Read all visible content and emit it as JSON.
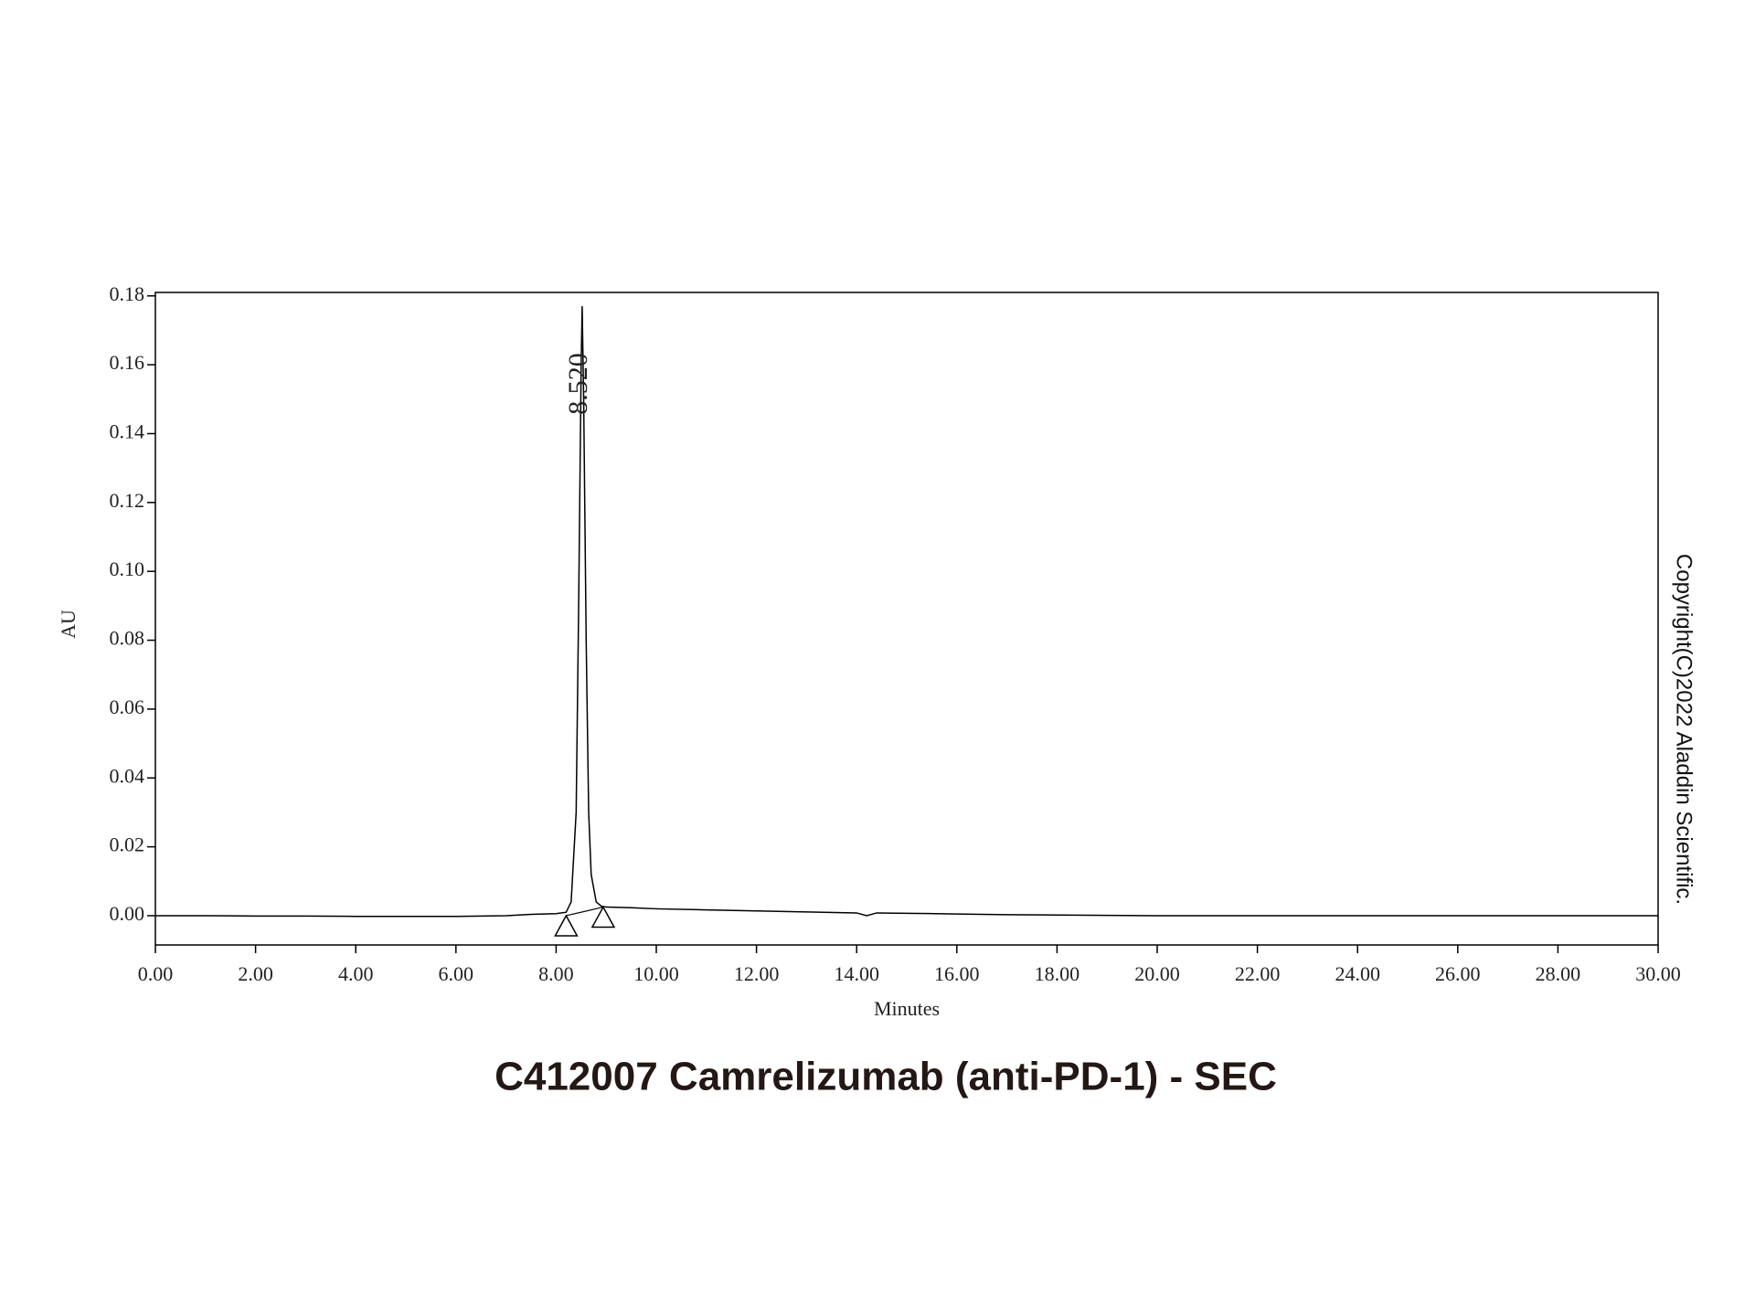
{
  "chart_data": {
    "type": "line",
    "title": "C412007 Camrelizumab (anti-PD-1) - SEC",
    "x_label": "Minutes",
    "y_label": "AU",
    "watermark": "Copyright(C)2022 Aladdin Scientific.",
    "x": [
      0,
      1,
      2,
      3,
      4,
      5,
      6,
      7,
      7.5,
      8.0,
      8.2,
      8.3,
      8.4,
      8.45,
      8.5,
      8.52,
      8.55,
      8.6,
      8.65,
      8.7,
      8.8,
      8.9,
      9.0,
      9.5,
      10,
      11,
      12,
      13,
      14,
      14.2,
      14.4,
      15,
      16,
      17,
      18,
      19,
      20,
      22,
      25,
      30
    ],
    "series": [
      {
        "color": "#000000",
        "values": [
          0,
          0,
          -0.0001,
          -0.0001,
          -0.0002,
          -0.0002,
          -0.0002,
          0,
          0.0004,
          0.0006,
          0.001,
          0.004,
          0.03,
          0.09,
          0.16,
          0.177,
          0.15,
          0.08,
          0.03,
          0.012,
          0.004,
          0.0028,
          0.0025,
          0.0023,
          0.002,
          0.0017,
          0.0014,
          0.0011,
          0.0008,
          0,
          0.0008,
          0.0007,
          0.0005,
          0.0003,
          0.0002,
          0.0001,
          0,
          0,
          0,
          0
        ]
      }
    ],
    "integration_baseline": {
      "x": [
        8.2,
        8.94
      ],
      "values": [
        0,
        0.0025
      ]
    },
    "annotations": [
      {
        "text": "8.520",
        "x": 8.52
      }
    ],
    "xlim": [
      0,
      30
    ],
    "ylim": [
      -0.0085,
      0.181
    ],
    "xticks": [
      {
        "value": 0,
        "label": "0.00"
      },
      {
        "value": 2,
        "label": "2.00"
      },
      {
        "value": 4,
        "label": "4.00"
      },
      {
        "value": 6,
        "label": "6.00"
      },
      {
        "value": 8,
        "label": "8.00"
      },
      {
        "value": 10,
        "label": "10.00"
      },
      {
        "value": 12,
        "label": "12.00"
      },
      {
        "value": 14,
        "label": "14.00"
      },
      {
        "value": 16,
        "label": "16.00"
      },
      {
        "value": 18,
        "label": "18.00"
      },
      {
        "value": 20,
        "label": "20.00"
      },
      {
        "value": 22,
        "label": "22.00"
      },
      {
        "value": 24,
        "label": "24.00"
      },
      {
        "value": 26,
        "label": "26.00"
      },
      {
        "value": 28,
        "label": "28.00"
      },
      {
        "value": 30,
        "label": "30.00"
      }
    ],
    "yticks": [
      {
        "value": 0,
        "label": "0.00"
      },
      0.02,
      0.04,
      0.06,
      0.08,
      {
        "value": 0.1,
        "label": "0.10"
      },
      0.12,
      0.14,
      0.16,
      0.18
    ],
    "grid": false
  }
}
